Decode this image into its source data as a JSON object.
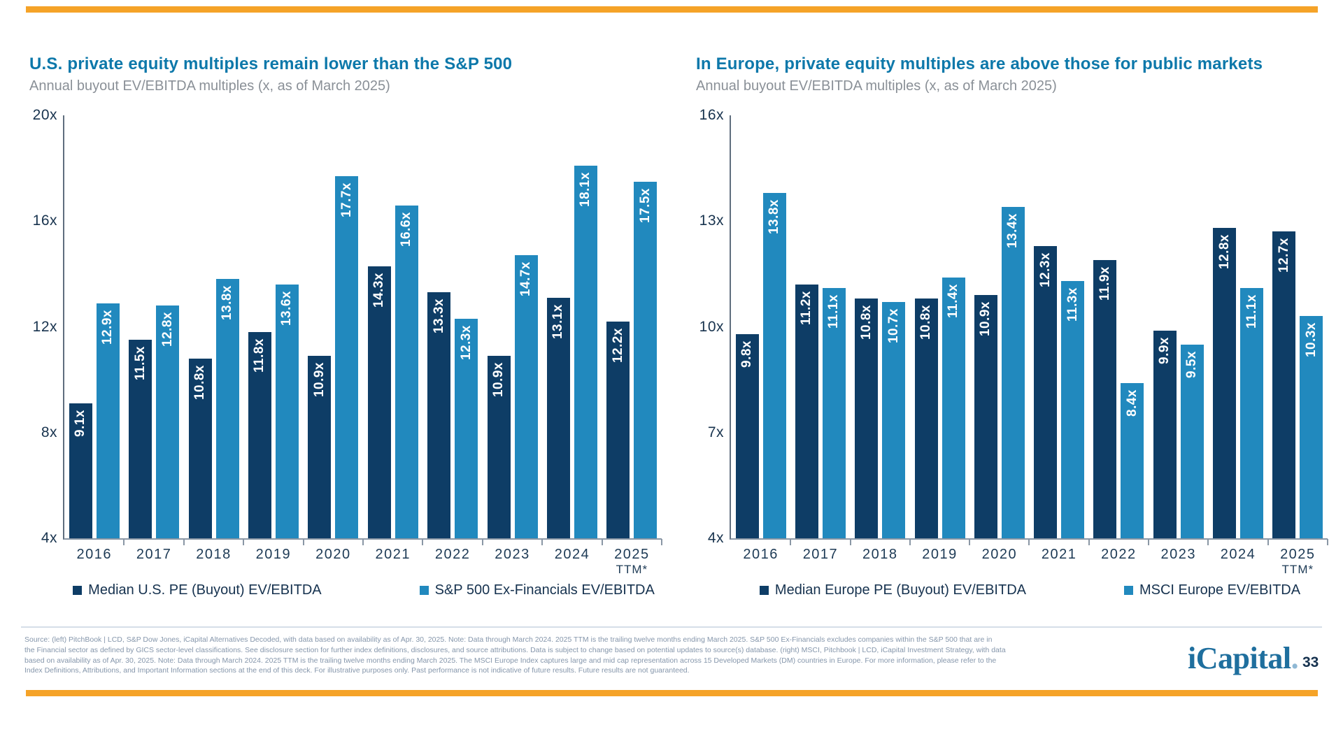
{
  "slide": {
    "accent_color": "#F5A328"
  },
  "chart_data": [
    {
      "type": "bar",
      "title": "U.S. private equity multiples remain lower than the S&P 500",
      "subtitle": "Annual buyout EV/EBITDA multiples (x, as of March 2025)",
      "categories": [
        "2016",
        "2017",
        "2018",
        "2019",
        "2020",
        "2021",
        "2022",
        "2023",
        "2024",
        "2025"
      ],
      "last_category_suffix": "TTM*",
      "series": [
        {
          "name": "Median U.S. PE (Buyout) EV/EBITDA",
          "color": "#0e3d66",
          "values": [
            9.1,
            11.5,
            10.8,
            11.8,
            10.9,
            14.3,
            13.3,
            10.9,
            13.1,
            12.2
          ]
        },
        {
          "name": "S&P 500 Ex-Financials EV/EBITDA",
          "color": "#2189be",
          "values": [
            12.9,
            12.8,
            13.8,
            13.6,
            17.7,
            16.6,
            12.3,
            14.7,
            18.1,
            17.5
          ]
        }
      ],
      "value_suffix": "x",
      "ylim": [
        4,
        20
      ],
      "yticks": [
        {
          "label": "20x",
          "value": 20
        },
        {
          "label": "16x",
          "value": 16
        },
        {
          "label": "12x",
          "value": 12
        },
        {
          "label": "8x",
          "value": 8
        },
        {
          "label": "4x",
          "value": 4
        }
      ],
      "grid": false,
      "legend_position": "bottom"
    },
    {
      "type": "bar",
      "title": "In Europe, private equity multiples are above those for public markets",
      "subtitle": "Annual buyout EV/EBITDA multiples (x, as of March 2025)",
      "categories": [
        "2016",
        "2017",
        "2018",
        "2019",
        "2020",
        "2021",
        "2022",
        "2023",
        "2024",
        "2025"
      ],
      "last_category_suffix": "TTM*",
      "series": [
        {
          "name": "Median Europe PE (Buyout) EV/EBITDA",
          "color": "#0e3d66",
          "values": [
            9.8,
            11.2,
            10.8,
            10.8,
            10.9,
            12.3,
            11.9,
            9.9,
            12.8,
            12.7
          ]
        },
        {
          "name": "MSCI Europe EV/EBITDA",
          "color": "#2189be",
          "values": [
            13.8,
            11.1,
            10.7,
            11.4,
            13.4,
            11.3,
            8.4,
            9.5,
            11.1,
            10.3
          ]
        }
      ],
      "value_suffix": "x",
      "ylim": [
        4,
        16
      ],
      "yticks": [
        {
          "label": "16x",
          "value": 16
        },
        {
          "label": "13x",
          "value": 13
        },
        {
          "label": "10x",
          "value": 10
        },
        {
          "label": "7x",
          "value": 7
        },
        {
          "label": "4x",
          "value": 4
        }
      ],
      "grid": false,
      "legend_position": "bottom"
    }
  ],
  "footer": {
    "text": "Source: (left) PitchBook | LCD, S&P Dow Jones, iCapital Alternatives Decoded, with data based on availability as of Apr. 30, 2025. Note: Data through March 2024. 2025 TTM is the trailing twelve months ending March 2025. S&P 500 Ex-Financials excludes companies within the S&P 500 that are in\nthe Financial sector as defined by GICS sector-level classifications. See disclosure section for further index definitions, disclosures, and source attributions. Data is subject to change based on potential updates to source(s) database. (right) MSCI, Pitchbook | LCD, iCapital Investment Strategy, with data\nbased on availability as of Apr. 30, 2025. Note: Data through March 2024. 2025 TTM is the trailing twelve months ending March 2025. The MSCI Europe Index captures large and mid cap representation across 15 Developed Markets (DM) countries in Europe. For more information, please refer to the\nIndex Definitions, Attributions, and Important Information sections at the end of this deck. For illustrative purposes only. Past performance is not indicative of future results. Future results are not guaranteed."
  },
  "logo": {
    "text": "iCapital",
    "dot": ".",
    "page": "33"
  }
}
